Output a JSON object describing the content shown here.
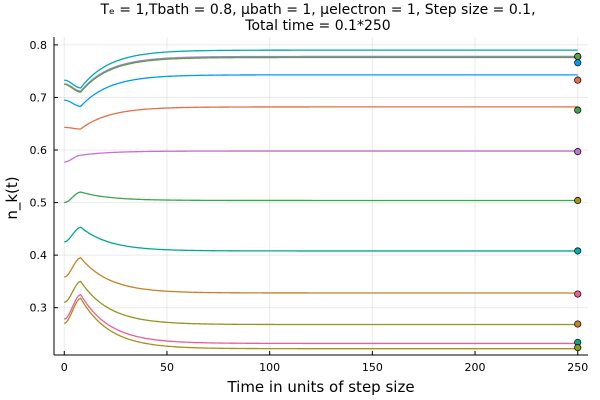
{
  "chart_data": {
    "type": "line",
    "title_line1": "Tₑ = 1,Tbath = 0.8, μbath = 1, μelectron = 1, Step size = 0.1,",
    "title_line2": "Total time = 0.1*250",
    "xlabel": "Time in units of step size",
    "ylabel": "n_k(t)",
    "xlim": [
      -5,
      255
    ],
    "ylim": [
      0.21,
      0.815
    ],
    "xticks": [
      0,
      50,
      100,
      150,
      200,
      250
    ],
    "yticks": [
      0.3,
      0.4,
      0.5,
      0.6,
      0.7,
      0.8
    ],
    "xtick_labels": [
      "0",
      "50",
      "100",
      "150",
      "200",
      "250"
    ],
    "ytick_labels": [
      "0.3",
      "0.4",
      "0.5",
      "0.6",
      "0.7",
      "0.8"
    ],
    "grid": true,
    "legend": "none",
    "endpoint_x": 250,
    "series": [
      {
        "color": "#009AFA",
        "start": 0.695,
        "dip": 0.683,
        "final": 0.743,
        "marker_y": 0.766
      },
      {
        "color": "#E36F47",
        "start": 0.643,
        "dip": 0.64,
        "final": 0.682,
        "marker_y": 0.733
      },
      {
        "color": "#3EA44E",
        "start": 0.5,
        "peak": 0.52,
        "final": 0.504,
        "marker_y": 0.676
      },
      {
        "color": "#C371D2",
        "start": 0.577,
        "peak": 0.59,
        "final": 0.598,
        "marker_y": 0.597
      },
      {
        "color": "#AC8E18",
        "start": 0.27,
        "peak": 0.318,
        "final": 0.222,
        "marker_y": 0.504
      },
      {
        "color": "#00AAAE",
        "start": 0.733,
        "dip": 0.718,
        "final": 0.79,
        "marker_y": 0.408
      },
      {
        "color": "#ED5E93",
        "start": 0.278,
        "peak": 0.325,
        "final": 0.232,
        "marker_y": 0.326
      },
      {
        "color": "#C68225",
        "start": 0.358,
        "peak": 0.395,
        "final": 0.328,
        "marker_y": 0.269
      },
      {
        "color": "#00A98D",
        "start": 0.425,
        "peak": 0.453,
        "final": 0.408,
        "marker_y": 0.234
      },
      {
        "color": "#8E971E",
        "start": 0.31,
        "peak": 0.35,
        "final": 0.268,
        "marker_y": 0.224
      },
      {
        "color": "#9B7FE8",
        "start": 0.726,
        "dip": 0.712,
        "final": 0.778,
        "marker_y": 0.778
      },
      {
        "color": "#609F3C",
        "start": 0.725,
        "dip": 0.71,
        "final": 0.776,
        "marker_y": 0.778
      }
    ]
  }
}
